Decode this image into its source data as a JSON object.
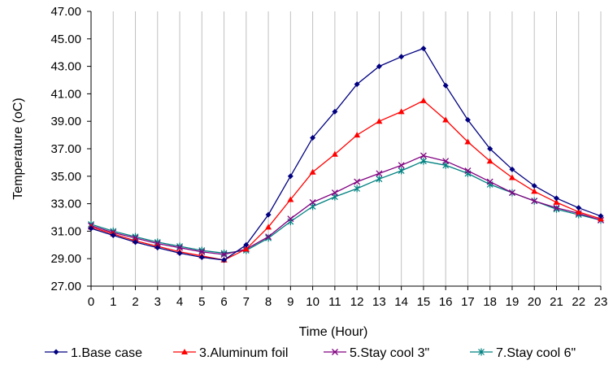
{
  "chart_data": {
    "type": "line",
    "xlabel": "Time (Hour)",
    "ylabel": "Temperature (oC)",
    "ylim": [
      27.0,
      47.0
    ],
    "yticks": [
      "27.00",
      "29.00",
      "31.00",
      "33.00",
      "35.00",
      "37.00",
      "39.00",
      "41.00",
      "43.00",
      "45.00",
      "47.00"
    ],
    "x": [
      0,
      1,
      2,
      3,
      4,
      5,
      6,
      7,
      8,
      9,
      10,
      11,
      12,
      13,
      14,
      15,
      16,
      17,
      18,
      19,
      20,
      21,
      22,
      23
    ],
    "grid": "vertical",
    "legend_position": "bottom",
    "series": [
      {
        "name": "1.Base case",
        "color": "#000080",
        "marker": "diamond",
        "values": [
          31.2,
          30.7,
          30.2,
          29.8,
          29.4,
          29.1,
          28.9,
          30.0,
          32.2,
          35.0,
          37.8,
          39.7,
          41.7,
          43.0,
          43.7,
          44.3,
          41.6,
          39.1,
          37.0,
          35.5,
          34.3,
          33.4,
          32.7,
          32.1
        ]
      },
      {
        "name": "3.Aluminum foil",
        "color": "#ff0000",
        "marker": "triangle",
        "values": [
          31.3,
          30.8,
          30.3,
          29.9,
          29.5,
          29.2,
          28.9,
          29.7,
          31.3,
          33.3,
          35.3,
          36.6,
          38.0,
          39.0,
          39.7,
          40.5,
          39.1,
          37.5,
          36.1,
          34.9,
          33.9,
          33.1,
          32.4,
          31.9
        ]
      },
      {
        "name": "5.Stay cool 3\"",
        "color": "#800080",
        "marker": "x",
        "values": [
          31.4,
          30.9,
          30.5,
          30.1,
          29.8,
          29.5,
          29.3,
          29.7,
          30.6,
          31.9,
          33.1,
          33.8,
          34.6,
          35.2,
          35.8,
          36.5,
          36.1,
          35.4,
          34.6,
          33.8,
          33.2,
          32.7,
          32.3,
          31.8
        ]
      },
      {
        "name": "7.Stay cool 6\"",
        "color": "#008080",
        "marker": "star",
        "values": [
          31.5,
          31.0,
          30.6,
          30.2,
          29.9,
          29.6,
          29.4,
          29.6,
          30.5,
          31.7,
          32.8,
          33.5,
          34.1,
          34.8,
          35.4,
          36.1,
          35.8,
          35.2,
          34.4,
          33.8,
          33.2,
          32.6,
          32.2,
          31.8
        ]
      }
    ]
  }
}
